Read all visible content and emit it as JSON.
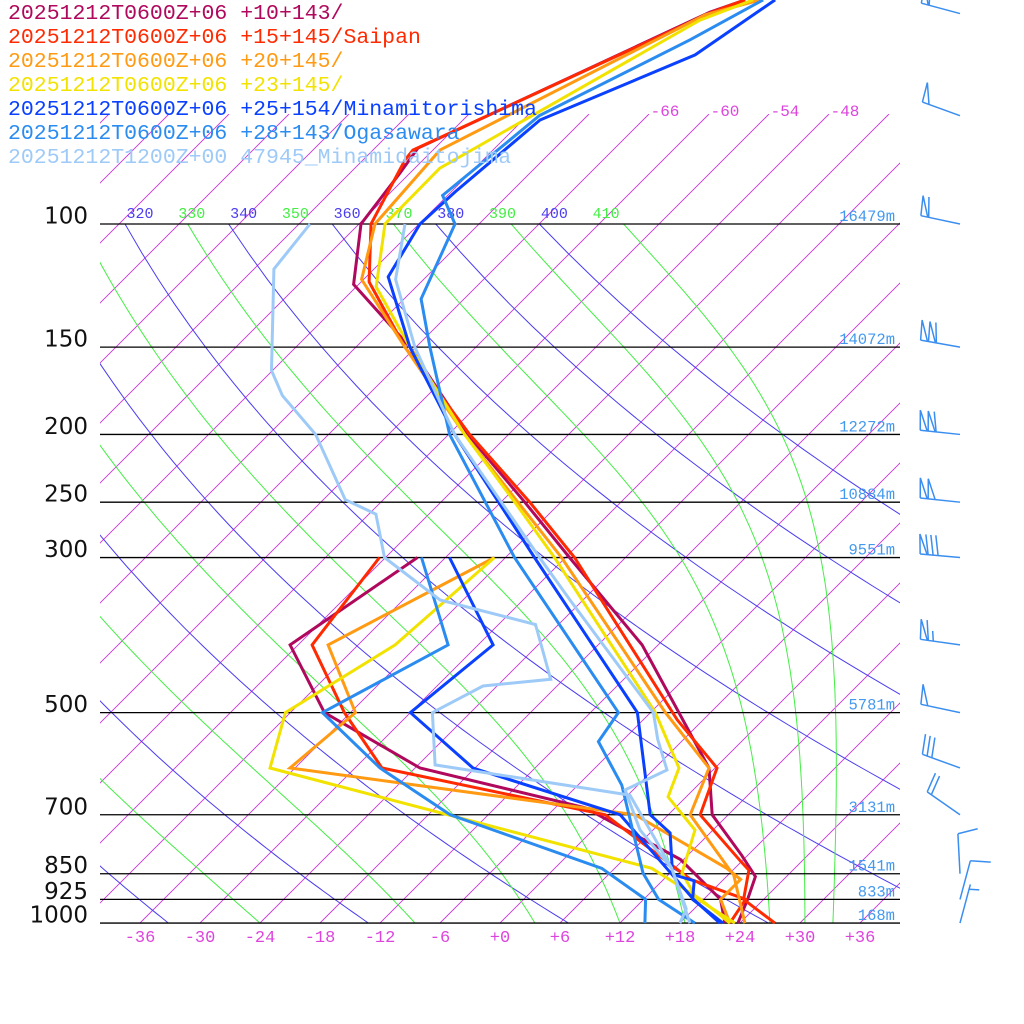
{
  "chart_data": {
    "type": "line",
    "diagram": "skew-T log-p",
    "y_scale": "log",
    "ylim_hPa": [
      1000,
      47.8
    ],
    "xlim_degC_at_1000hPa": [
      -40,
      40
    ],
    "legend_placement": "top-left",
    "pressure_levels": [
      {
        "p": 100,
        "label": "100",
        "height": "16479m"
      },
      {
        "p": 150,
        "label": "150",
        "height": "14072m"
      },
      {
        "p": 200,
        "label": "200",
        "height": "12272m"
      },
      {
        "p": 250,
        "label": "250",
        "height": "10884m"
      },
      {
        "p": 300,
        "label": "300",
        "height": "9551m"
      },
      {
        "p": 500,
        "label": "500",
        "height": "5781m"
      },
      {
        "p": 700,
        "label": "700",
        "height": "3131m"
      },
      {
        "p": 850,
        "label": "850",
        "height": "1541m"
      },
      {
        "p": 925,
        "label": "925",
        "height": "833m"
      },
      {
        "p": 1000,
        "label": "1000",
        "height": "168m"
      }
    ],
    "temperature_ticks": [
      {
        "t": -36,
        "label": "-36"
      },
      {
        "t": -30,
        "label": "-30"
      },
      {
        "t": -24,
        "label": "-24"
      },
      {
        "t": -18,
        "label": "-18"
      },
      {
        "t": -12,
        "label": "-12"
      },
      {
        "t": -6,
        "label": "-6"
      },
      {
        "t": 0,
        "label": "+0"
      },
      {
        "t": 6,
        "label": "+6"
      },
      {
        "t": 12,
        "label": "+12"
      },
      {
        "t": 18,
        "label": "+18"
      },
      {
        "t": 24,
        "label": "+24"
      },
      {
        "t": 30,
        "label": "+30"
      },
      {
        "t": 36,
        "label": "+36"
      }
    ],
    "isotherm_top_labels": [
      {
        "t": -66,
        "label": "-66"
      },
      {
        "t": -60,
        "label": "-60"
      },
      {
        "t": -54,
        "label": "-54"
      },
      {
        "t": -48,
        "label": "-48"
      }
    ],
    "isotherm_interval_degC": 6,
    "dry_adiabats_K": [
      240,
      260,
      280,
      300,
      320,
      340,
      360,
      380,
      400
    ],
    "moist_adiabats_start_degC_at_1000hPa": [
      -24,
      -8.5,
      3.5,
      12,
      18.5,
      27,
      30.5,
      33.3
    ],
    "theta_labels": [
      {
        "theta": 320,
        "label": "320",
        "kind": "dry"
      },
      {
        "theta": 330,
        "label": "330",
        "kind": "moist"
      },
      {
        "theta": 340,
        "label": "340",
        "kind": "dry"
      },
      {
        "theta": 350,
        "label": "350",
        "kind": "moist"
      },
      {
        "theta": 360,
        "label": "360",
        "kind": "dry"
      },
      {
        "theta": 370,
        "label": "370",
        "kind": "moist"
      },
      {
        "theta": 380,
        "label": "380",
        "kind": "dry"
      },
      {
        "theta": 390,
        "label": "390",
        "kind": "moist"
      },
      {
        "theta": 400,
        "label": "400",
        "kind": "dry"
      },
      {
        "theta": 410,
        "label": "410",
        "kind": "moist"
      }
    ],
    "colors": {
      "isotherm": "#cc33dd",
      "dry_adiabat": "#4a3cf0",
      "moist_adiabat": "#44ee44",
      "isobar": "#000000",
      "height_label": "#4499ee",
      "temp_label": "#dd44dd",
      "wind_barb": "#3a8ef0"
    },
    "series": [
      {
        "name": "20251212T0600Z+06 +10+143/",
        "color": "#b0085c",
        "temperature": [
          [
            47.8,
            -67.8
          ],
          [
            49.8,
            -70.1
          ],
          [
            77.9,
            -85.7
          ],
          [
            84.5,
            -85
          ],
          [
            100,
            -83.8
          ],
          [
            122,
            -78.5
          ],
          [
            150,
            -66.6
          ],
          [
            200,
            -52.1
          ],
          [
            250,
            -39.6
          ],
          [
            300,
            -29.6
          ],
          [
            400,
            -13.6
          ],
          [
            600,
            5.4
          ],
          [
            700,
            10.4
          ],
          [
            800,
            17.4
          ],
          [
            858,
            20.9
          ],
          [
            925,
            22.4
          ],
          [
            1000,
            23.8
          ]
        ],
        "dewpoint": [
          [
            300,
            -44.8
          ],
          [
            400,
            -48.8
          ],
          [
            500,
            -38.6
          ],
          [
            600,
            -23.5
          ],
          [
            684,
            -3
          ],
          [
            811,
            11.7
          ],
          [
            925,
            19.7
          ],
          [
            1000,
            22.5
          ]
        ]
      },
      {
        "name": "20251212T0600Z+06 +15+145/Saipan",
        "color": "#ff2a00",
        "temperature": [
          [
            47.8,
            -67.8
          ],
          [
            49.8,
            -69.9
          ],
          [
            78.4,
            -86
          ],
          [
            81,
            -85.8
          ],
          [
            100,
            -82.8
          ],
          [
            121,
            -77.2
          ],
          [
            150,
            -67.1
          ],
          [
            200,
            -51.9
          ],
          [
            250,
            -39.1
          ],
          [
            300,
            -29.1
          ],
          [
            512,
            -2.6
          ],
          [
            600,
            6.2
          ],
          [
            700,
            9.2
          ],
          [
            816,
            17.9
          ],
          [
            840,
            19.6
          ],
          [
            925,
            22
          ],
          [
            1000,
            27.5
          ]
        ],
        "dewpoint": [
          [
            300,
            -48.6
          ],
          [
            400,
            -46.6
          ],
          [
            500,
            -36.6
          ],
          [
            600,
            -27.3
          ],
          [
            700,
            -0.3
          ],
          [
            866,
            14.7
          ],
          [
            925,
            22.2
          ],
          [
            1000,
            23
          ]
        ]
      },
      {
        "name": "20251212T0600Z+06 +20+145/",
        "color": "#ff9a12",
        "temperature": [
          [
            47.8,
            -66.3
          ],
          [
            50.2,
            -70.3
          ],
          [
            78.4,
            -83.3
          ],
          [
            100,
            -82.4
          ],
          [
            120,
            -78.2
          ],
          [
            150,
            -67.1
          ],
          [
            200,
            -52.4
          ],
          [
            300,
            -30.4
          ],
          [
            500,
            -4.5
          ],
          [
            600,
            5.4
          ],
          [
            700,
            8.2
          ],
          [
            840,
            17.7
          ],
          [
            852,
            18.5
          ],
          [
            1000,
            24.5
          ]
        ],
        "dewpoint": [
          [
            300,
            -37.1
          ],
          [
            400,
            -45
          ],
          [
            500,
            -35.5
          ],
          [
            600,
            -36.5
          ],
          [
            700,
            2.7
          ],
          [
            835,
            17.2
          ],
          [
            866,
            19.7
          ],
          [
            925,
            19.7
          ],
          [
            1000,
            23
          ]
        ]
      },
      {
        "name": "20251212T0600Z+06 +23+145/",
        "color": "#f2e200",
        "temperature": [
          [
            47.8,
            -67
          ],
          [
            51.1,
            -70.3
          ],
          [
            83.2,
            -81.5
          ],
          [
            100,
            -81.4
          ],
          [
            123,
            -76
          ],
          [
            150,
            -66.6
          ],
          [
            200,
            -52.4
          ],
          [
            250,
            -40.6
          ],
          [
            300,
            -31.1
          ],
          [
            500,
            -5.5
          ],
          [
            600,
            2.4
          ],
          [
            660,
            4.2
          ],
          [
            736,
            10.2
          ],
          [
            848,
            13.2
          ],
          [
            922,
            17.2
          ],
          [
            1000,
            23.5
          ]
        ],
        "dewpoint": [
          [
            300,
            -37.1
          ],
          [
            400,
            -38.3
          ],
          [
            500,
            -42.5
          ],
          [
            600,
            -38.5
          ],
          [
            835,
            9.7
          ],
          [
            925,
            17.7
          ],
          [
            1000,
            23
          ]
        ]
      },
      {
        "name": "20251212T0600Z+06 +25+154/Minamitorishima",
        "color": "#0a40ff",
        "temperature": [
          [
            47.8,
            -64.8
          ],
          [
            57.3,
            -67.3
          ],
          [
            71,
            -76.3
          ],
          [
            90,
            -77.6
          ],
          [
            100,
            -77.9
          ],
          [
            119,
            -75.8
          ],
          [
            150,
            -66.6
          ],
          [
            200,
            -53.4
          ],
          [
            300,
            -33.1
          ],
          [
            500,
            -7.3
          ],
          [
            700,
            4.2
          ],
          [
            743,
            8
          ],
          [
            852,
            12.4
          ],
          [
            870,
            15.2
          ],
          [
            925,
            16.9
          ],
          [
            1000,
            22.3
          ]
        ],
        "dewpoint": [
          [
            300,
            -41.6
          ],
          [
            400,
            -28.5
          ],
          [
            500,
            -30
          ],
          [
            600,
            -18.2
          ],
          [
            700,
            1.2
          ],
          [
            850,
            12.2
          ],
          [
            925,
            17
          ],
          [
            1000,
            22
          ]
        ]
      },
      {
        "name": "20251212T0600Z+06 +28+143/Ogasawara",
        "color": "#2a8cf0",
        "temperature": [
          [
            47.8,
            -66
          ],
          [
            54.5,
            -69.3
          ],
          [
            70,
            -76.8
          ],
          [
            91,
            -78.5
          ],
          [
            100,
            -74.4
          ],
          [
            128,
            -70.3
          ],
          [
            150,
            -64.6
          ],
          [
            200,
            -53.9
          ],
          [
            300,
            -35.1
          ],
          [
            500,
            -9.2
          ],
          [
            550,
            -8.3
          ],
          [
            635,
            -1.6
          ],
          [
            848,
            9.3
          ],
          [
            925,
            13.5
          ],
          [
            1000,
            19.5
          ]
        ],
        "dewpoint": [
          [
            300,
            -44.4
          ],
          [
            400,
            -33
          ],
          [
            500,
            -38.8
          ],
          [
            600,
            -27.5
          ],
          [
            700,
            -15.8
          ],
          [
            835,
            4.7
          ],
          [
            925,
            12.2
          ],
          [
            1000,
            14.5
          ]
        ]
      },
      {
        "name": "20251212T1200Z+00 47945_Minamidaitojima",
        "color": "#9ecaf8",
        "temperature": [
          [
            100,
            -79.4
          ],
          [
            120,
            -74.8
          ],
          [
            150,
            -66.1
          ],
          [
            200,
            -53.4
          ],
          [
            300,
            -32.6
          ],
          [
            345,
            -25.3
          ],
          [
            500,
            -5.7
          ],
          [
            546,
            -2.6
          ],
          [
            604,
            1.4
          ],
          [
            645,
            -0.8
          ],
          [
            736,
            4.7
          ],
          [
            835,
            11.7
          ],
          [
            1000,
            19
          ]
        ],
        "dewpoint": [
          [
            100,
            -88.9
          ],
          [
            116,
            -88
          ],
          [
            162,
            -78.1
          ],
          [
            176,
            -74.5
          ],
          [
            200,
            -67.3
          ],
          [
            248,
            -57.8
          ],
          [
            260,
            -53.3
          ],
          [
            300,
            -48.1
          ],
          [
            345,
            -38.3
          ],
          [
            374,
            -26.3
          ],
          [
            448,
            -19.3
          ],
          [
            458,
            -25.4
          ],
          [
            500,
            -27.8
          ],
          [
            594,
            -22.3
          ],
          [
            656,
            0.2
          ],
          [
            736,
            5.7
          ],
          [
            835,
            11.7
          ],
          [
            954,
            17.2
          ],
          [
            1000,
            18
          ]
        ]
      }
    ],
    "wind_barbs": [
      {
        "p": 50,
        "direction_deg": 285,
        "speed_kt": 60
      },
      {
        "p": 70,
        "direction_deg": 290,
        "speed_kt": 50
      },
      {
        "p": 100,
        "direction_deg": 282,
        "speed_kt": 60
      },
      {
        "p": 150,
        "direction_deg": 280,
        "speed_kt": 110
      },
      {
        "p": 200,
        "direction_deg": 276,
        "speed_kt": 110
      },
      {
        "p": 250,
        "direction_deg": 276,
        "speed_kt": 100
      },
      {
        "p": 300,
        "direction_deg": 275,
        "speed_kt": 80
      },
      {
        "p": 400,
        "direction_deg": 278,
        "speed_kt": 65
      },
      {
        "p": 500,
        "direction_deg": 282,
        "speed_kt": 50
      },
      {
        "p": 600,
        "direction_deg": 290,
        "speed_kt": 30
      },
      {
        "p": 700,
        "direction_deg": 305,
        "speed_kt": 20
      },
      {
        "p": 850,
        "direction_deg": 357,
        "speed_kt": 10
      },
      {
        "p": 925,
        "direction_deg": 15,
        "speed_kt": 10
      },
      {
        "p": 1000,
        "direction_deg": 15,
        "speed_kt": 5
      }
    ]
  }
}
